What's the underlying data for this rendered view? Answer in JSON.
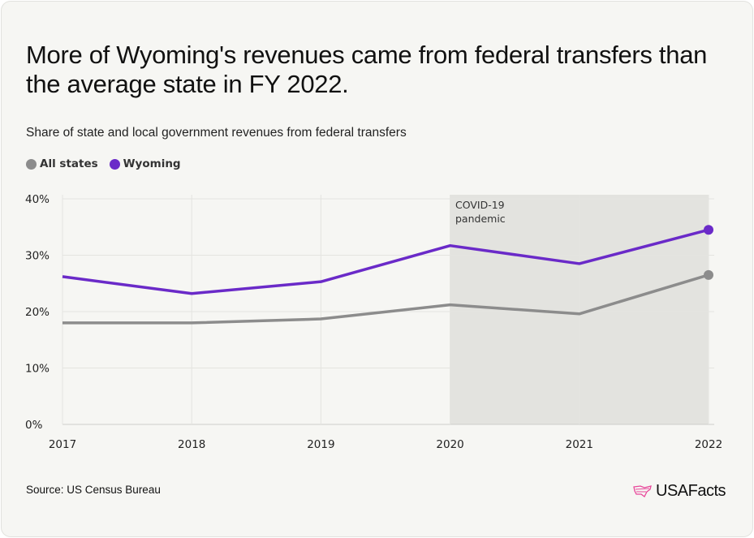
{
  "title": "More of Wyoming's revenues came from federal transfers than the average state in FY 2022.",
  "subtitle": "Share of state and local government revenues from federal transfers",
  "source": "Source: US Census Bureau",
  "logo": "USAFacts",
  "colors": {
    "all_states": "#8c8c8c",
    "wyoming": "#6a2ac8",
    "shade": "#e3e3df",
    "logo_accent": "#e8479a"
  },
  "chart_data": {
    "type": "line",
    "x": [
      "2017",
      "2018",
      "2019",
      "2020",
      "2021",
      "2022"
    ],
    "series": [
      {
        "name": "All states",
        "values": [
          18.0,
          18.0,
          18.7,
          21.2,
          19.6,
          26.5
        ]
      },
      {
        "name": "Wyoming",
        "values": [
          26.2,
          23.2,
          25.3,
          31.7,
          28.5,
          34.5
        ]
      }
    ],
    "ylim": [
      0,
      40
    ],
    "yticks": [
      "0%",
      "10%",
      "20%",
      "30%",
      "40%"
    ],
    "ytick_values": [
      0,
      10,
      20,
      30,
      40
    ],
    "grid": true,
    "legend": "top-left",
    "annotation": {
      "text_line1": "COVID-19",
      "text_line2": "pandemic",
      "x_start": "2020",
      "x_end": "2022"
    }
  }
}
